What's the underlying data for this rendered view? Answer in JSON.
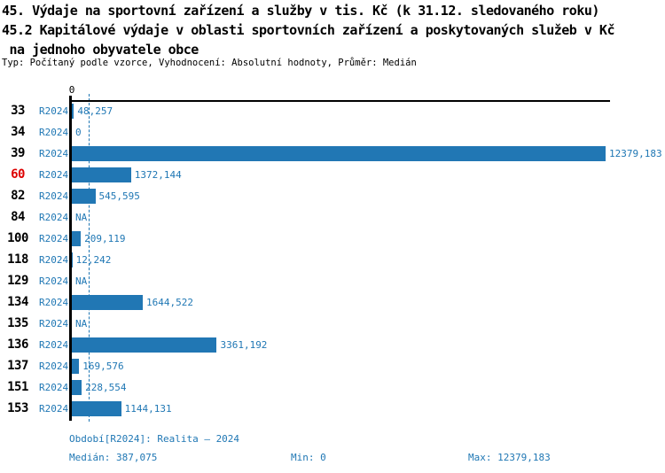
{
  "title": {
    "line1": "45. Výdaje na sportovní zařízení a služby v tis. Kč (k 31.12. sledovaného roku)",
    "line2": "45.2 Kapitálové výdaje v oblasti sportovních zařízení a poskytovaných služeb v Kč",
    "line3": " na jednoho obyvatele obce"
  },
  "subtitle": "Typ: Počítaný podle vzorce, Vyhodnocení: Absolutní hodnoty, Průměr: Medián",
  "colors": {
    "bar_blue": "#2177b4",
    "text_blue": "#1f77b4",
    "highlight_red": "#dd0000",
    "axis_black": "#000000",
    "background": "#ffffff"
  },
  "chart_data": {
    "type": "bar",
    "orientation": "horizontal",
    "axis_zero_label": "0",
    "series_label": "R2024",
    "xlim": [
      0,
      12379.183
    ],
    "median_value": 387.075,
    "grid": false,
    "legend": "none",
    "categories": [
      "33",
      "34",
      "39",
      "60",
      "82",
      "84",
      "100",
      "118",
      "129",
      "134",
      "135",
      "136",
      "137",
      "151",
      "153"
    ],
    "rows": [
      {
        "id": "33",
        "value": 48.257,
        "value_label": "48,257",
        "highlight": false
      },
      {
        "id": "34",
        "value": 0,
        "value_label": "0",
        "highlight": false
      },
      {
        "id": "39",
        "value": 12379.183,
        "value_label": "12379,183",
        "highlight": false
      },
      {
        "id": "60",
        "value": 1372.144,
        "value_label": "1372,144",
        "highlight": true
      },
      {
        "id": "82",
        "value": 545.595,
        "value_label": "545,595",
        "highlight": false
      },
      {
        "id": "84",
        "value": null,
        "value_label": "NA",
        "highlight": false
      },
      {
        "id": "100",
        "value": 209.119,
        "value_label": "209,119",
        "highlight": false
      },
      {
        "id": "118",
        "value": 12.242,
        "value_label": "12,242",
        "highlight": false
      },
      {
        "id": "129",
        "value": null,
        "value_label": "NA",
        "highlight": false
      },
      {
        "id": "134",
        "value": 1644.522,
        "value_label": "1644,522",
        "highlight": false
      },
      {
        "id": "135",
        "value": null,
        "value_label": "NA",
        "highlight": false
      },
      {
        "id": "136",
        "value": 3361.192,
        "value_label": "3361,192",
        "highlight": false
      },
      {
        "id": "137",
        "value": 169.576,
        "value_label": "169,576",
        "highlight": false
      },
      {
        "id": "151",
        "value": 228.554,
        "value_label": "228,554",
        "highlight": false
      },
      {
        "id": "153",
        "value": 1144.131,
        "value_label": "1144,131",
        "highlight": false
      }
    ]
  },
  "footer": {
    "period": "Období[R2024]: Realita – 2024",
    "median": "Medián: 387,075",
    "min": "Min: 0",
    "max": "Max: 12379,183"
  }
}
